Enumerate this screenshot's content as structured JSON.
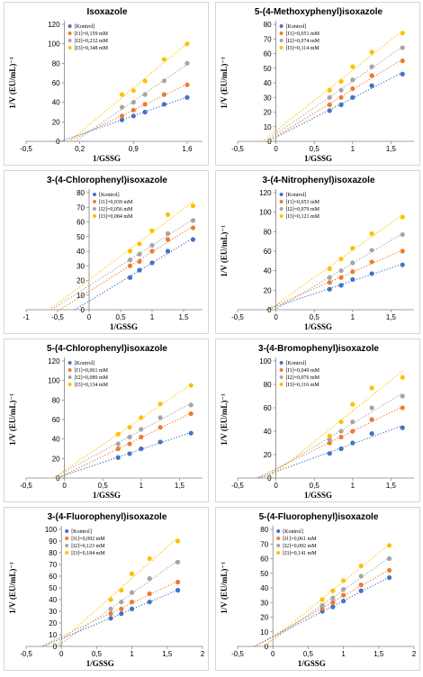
{
  "colors": {
    "kontrol": "#4472C4",
    "i1": "#ED7D31",
    "i2": "#A5A5A5",
    "i3": "#FFC000"
  },
  "chart_data": [
    {
      "type": "scatter",
      "title": "Isoxazole",
      "xlabel": "1/GSSG",
      "ylabel": "1/V (EU/mL)⁻¹",
      "xlim": [
        -0.5,
        1.8
      ],
      "ylim": [
        0,
        120
      ],
      "xticks": [
        -0.5,
        0.2,
        0.9,
        1.6
      ],
      "xticklabels": [
        "-0,5",
        "0,2",
        "0,9",
        "1,6"
      ],
      "yticks": [
        0,
        20,
        40,
        60,
        80,
        100,
        120
      ],
      "fit_lines": "dotted",
      "legend": "top-left",
      "series": [
        {
          "name": "[Kontrol]",
          "x": [
            0.75,
            0.9,
            1.05,
            1.3,
            1.6
          ],
          "y": [
            22,
            26,
            30,
            38,
            45
          ]
        },
        {
          "name": "[I1]=0,159 mM",
          "x": [
            0.75,
            0.9,
            1.05,
            1.3,
            1.6
          ],
          "y": [
            26,
            32,
            38,
            48,
            58
          ]
        },
        {
          "name": "[I2]=0,232 mM",
          "x": [
            0.75,
            0.9,
            1.05,
            1.3,
            1.6
          ],
          "y": [
            35,
            40,
            48,
            62,
            80
          ]
        },
        {
          "name": "[I3]=0,348 mM",
          "x": [
            0.75,
            0.9,
            1.05,
            1.3,
            1.6
          ],
          "y": [
            48,
            52,
            62,
            84,
            100
          ]
        }
      ]
    },
    {
      "type": "scatter",
      "title": "5-(4-Methoxyphenyl)isoxazole",
      "xlabel": "1/GSSG",
      "ylabel": "1/V (EU/mL)⁻¹",
      "xlim": [
        -0.5,
        1.8
      ],
      "ylim": [
        0,
        80
      ],
      "xticks": [
        -0.5,
        0,
        0.5,
        1,
        1.5
      ],
      "xticklabels": [
        "-0,5",
        "0",
        "0,5",
        "1",
        "1,5"
      ],
      "yticks": [
        0,
        10,
        20,
        30,
        40,
        50,
        60,
        70,
        80
      ],
      "fit_lines": "dotted",
      "legend": "top-left",
      "series": [
        {
          "name": "[Kontrol]",
          "x": [
            0.7,
            0.85,
            1.0,
            1.25,
            1.65
          ],
          "y": [
            21,
            25,
            30,
            38,
            46
          ]
        },
        {
          "name": "[I1]=0,051 mM",
          "x": [
            0.7,
            0.85,
            1.0,
            1.25,
            1.65
          ],
          "y": [
            25,
            30,
            36,
            45,
            55
          ]
        },
        {
          "name": "[I2]=0,074 mM",
          "x": [
            0.7,
            0.85,
            1.0,
            1.25,
            1.65
          ],
          "y": [
            30,
            35,
            42,
            51,
            64
          ]
        },
        {
          "name": "[I3]=0,114 mM",
          "x": [
            0.7,
            0.85,
            1.0,
            1.25,
            1.65
          ],
          "y": [
            35,
            41,
            51,
            61,
            74
          ]
        }
      ]
    },
    {
      "type": "scatter",
      "title": "3-(4-Chlorophenyl)isoxazole",
      "xlabel": "1/GSSG",
      "ylabel": "",
      "xlim": [
        -1,
        1.8
      ],
      "ylim": [
        0,
        80
      ],
      "xticks": [
        -1,
        -0.5,
        0,
        0.5,
        1,
        1.5
      ],
      "xticklabels": [
        "-1",
        "-0,5",
        "0",
        "0,5",
        "1",
        "1,5"
      ],
      "yticks": [
        0,
        10,
        20,
        30,
        40,
        50,
        60,
        70,
        80
      ],
      "fit_lines": "dotted",
      "legend": "top-left",
      "series": [
        {
          "name": "[Kontrol]",
          "x": [
            0.65,
            0.8,
            1.0,
            1.25,
            1.65
          ],
          "y": [
            22,
            27,
            32,
            40,
            48
          ]
        },
        {
          "name": "[I1]=0,039 mM",
          "x": [
            0.65,
            0.8,
            1.0,
            1.25,
            1.65
          ],
          "y": [
            30,
            33,
            40,
            48,
            56
          ]
        },
        {
          "name": "[I2]=0,056 mM",
          "x": [
            0.65,
            0.8,
            1.0,
            1.25,
            1.65
          ],
          "y": [
            34,
            38,
            44,
            52,
            61
          ]
        },
        {
          "name": "[I3]=0,084 mM",
          "x": [
            0.65,
            0.8,
            1.0,
            1.25,
            1.65
          ],
          "y": [
            40,
            45,
            54,
            65,
            71
          ]
        }
      ]
    },
    {
      "type": "scatter",
      "title": "3-(4-Nitrophenyl)isoxazole",
      "xlabel": "1/GSSG",
      "ylabel": "1/V (EU/mL)⁻¹",
      "xlim": [
        -0.5,
        1.8
      ],
      "ylim": [
        0,
        120
      ],
      "xticks": [
        -0.5,
        0,
        0.5,
        1,
        1.5
      ],
      "xticklabels": [
        "-0,5",
        "0",
        "0,5",
        "1",
        "1,5"
      ],
      "yticks": [
        0,
        20,
        40,
        60,
        80,
        100,
        120
      ],
      "fit_lines": "dotted",
      "legend": "top-left",
      "series": [
        {
          "name": "[Kontrol]",
          "x": [
            0.7,
            0.85,
            1.0,
            1.25,
            1.65
          ],
          "y": [
            21,
            25,
            31,
            37,
            46
          ]
        },
        {
          "name": "[I1]=0,053 mM",
          "x": [
            0.7,
            0.85,
            1.0,
            1.25,
            1.65
          ],
          "y": [
            28,
            33,
            39,
            49,
            60
          ]
        },
        {
          "name": "[I2]=0,079 mM",
          "x": [
            0.7,
            0.85,
            1.0,
            1.25,
            1.65
          ],
          "y": [
            33,
            40,
            48,
            61,
            77
          ]
        },
        {
          "name": "[I3]=0,121 mM",
          "x": [
            0.7,
            0.85,
            1.0,
            1.25,
            1.65
          ],
          "y": [
            42,
            52,
            63,
            78,
            95
          ]
        }
      ]
    },
    {
      "type": "scatter",
      "title": "5-(4-Chlorophenyl)isoxazole",
      "xlabel": "1/GSSG",
      "ylabel": "1/V (EU/mL)⁻¹",
      "xlim": [
        -0.5,
        1.8
      ],
      "ylim": [
        0,
        120
      ],
      "xticks": [
        -0.5,
        0,
        0.5,
        1,
        1.5
      ],
      "xticklabels": [
        "-0,5",
        "0",
        "0,5",
        "1",
        "1,5"
      ],
      "yticks": [
        0,
        20,
        40,
        60,
        80,
        100,
        120
      ],
      "fit_lines": "dotted",
      "legend": "top-left",
      "series": [
        {
          "name": "[Kontrol]",
          "x": [
            0.7,
            0.85,
            1.0,
            1.25,
            1.65
          ],
          "y": [
            21,
            25,
            30,
            37,
            46
          ]
        },
        {
          "name": "[I1]=0,061 mM",
          "x": [
            0.7,
            0.85,
            1.0,
            1.25,
            1.65
          ],
          "y": [
            30,
            35,
            42,
            52,
            66
          ]
        },
        {
          "name": "[I2]=0,089 mM",
          "x": [
            0.7,
            0.85,
            1.0,
            1.25,
            1.65
          ],
          "y": [
            35,
            42,
            50,
            62,
            75
          ]
        },
        {
          "name": "[I3]=0,134 mM",
          "x": [
            0.7,
            0.85,
            1.0,
            1.25,
            1.65
          ],
          "y": [
            45,
            52,
            62,
            76,
            95
          ]
        }
      ]
    },
    {
      "type": "scatter",
      "title": "3-(4-Bromophenyl)isoxazole",
      "xlabel": "1/GSSG",
      "ylabel": "1/V (EU/mL)⁻¹",
      "xlim": [
        -0.5,
        1.8
      ],
      "ylim": [
        0,
        100
      ],
      "xticks": [
        -0.5,
        0,
        0.5,
        1,
        1.5
      ],
      "xticklabels": [
        "-0,5",
        "0",
        "0,5",
        "1",
        "1,5"
      ],
      "yticks": [
        0,
        20,
        40,
        60,
        80,
        100
      ],
      "fit_lines": "dotted",
      "legend": "top-left",
      "series": [
        {
          "name": "[Kontrol]",
          "x": [
            0.7,
            0.85,
            1.0,
            1.25,
            1.65
          ],
          "y": [
            21,
            25,
            30,
            38,
            43
          ]
        },
        {
          "name": "[I1]=0,049 mM",
          "x": [
            0.7,
            0.85,
            1.0,
            1.25,
            1.65
          ],
          "y": [
            30,
            35,
            40,
            50,
            60
          ]
        },
        {
          "name": "[I2]=0,076 mM",
          "x": [
            0.7,
            0.85,
            1.0,
            1.25,
            1.65
          ],
          "y": [
            33,
            40,
            48,
            60,
            70
          ]
        },
        {
          "name": "[I3]=0,116 mM",
          "x": [
            0.7,
            0.85,
            1.0,
            1.25,
            1.65
          ],
          "y": [
            36,
            48,
            63,
            77,
            86
          ]
        }
      ]
    },
    {
      "type": "scatter",
      "title": "3-(4-Fluorophenyl)isoxazole",
      "xlabel": "1/GSSG",
      "ylabel": "1/V (EU/mL)⁻¹",
      "xlim": [
        -0.5,
        2
      ],
      "ylim": [
        0,
        100
      ],
      "xticks": [
        -0.5,
        0,
        0.5,
        1,
        1.5,
        2
      ],
      "xticklabels": [
        "-0,5",
        "0",
        "0,5",
        "1",
        "1,5",
        "2"
      ],
      "yticks": [
        0,
        10,
        20,
        30,
        40,
        50,
        60,
        70,
        80,
        90,
        100
      ],
      "fit_lines": "dotted",
      "legend": "top-left",
      "series": [
        {
          "name": "[Kontrol]",
          "x": [
            0.7,
            0.85,
            1.0,
            1.25,
            1.65
          ],
          "y": [
            24,
            28,
            32,
            38,
            48
          ]
        },
        {
          "name": "[I1]=0,092 mM",
          "x": [
            0.7,
            0.85,
            1.0,
            1.25,
            1.65
          ],
          "y": [
            28,
            32,
            38,
            45,
            55
          ]
        },
        {
          "name": "[I2]=0,123 mM",
          "x": [
            0.7,
            0.85,
            1.0,
            1.25,
            1.65
          ],
          "y": [
            32,
            38,
            46,
            58,
            72
          ]
        },
        {
          "name": "[I3]=0,184 mM",
          "x": [
            0.7,
            0.85,
            1.0,
            1.25,
            1.65
          ],
          "y": [
            40,
            48,
            62,
            75,
            90
          ]
        }
      ]
    },
    {
      "type": "scatter",
      "title": "5-(4-Fluorophenyl)isoxazole",
      "xlabel": "1/GSSG",
      "ylabel": "1/V (EU/mL)⁻¹",
      "xlim": [
        -0.5,
        2
      ],
      "ylim": [
        0,
        80
      ],
      "xticks": [
        -0.5,
        0,
        0.5,
        1,
        1.5,
        2
      ],
      "xticklabels": [
        "-0,5",
        "0",
        "0,5",
        "1",
        "1,5",
        "2"
      ],
      "yticks": [
        0,
        10,
        20,
        30,
        40,
        50,
        60,
        70,
        80
      ],
      "fit_lines": "dotted",
      "legend": "top-left",
      "series": [
        {
          "name": "[Kontrol]",
          "x": [
            0.7,
            0.85,
            1.0,
            1.25,
            1.65
          ],
          "y": [
            24,
            27,
            31,
            38,
            47
          ]
        },
        {
          "name": "[I1]=0,061 mM",
          "x": [
            0.7,
            0.85,
            1.0,
            1.25,
            1.65
          ],
          "y": [
            26,
            30,
            35,
            42,
            52
          ]
        },
        {
          "name": "[I2]=0,092 mM",
          "x": [
            0.7,
            0.85,
            1.0,
            1.25,
            1.65
          ],
          "y": [
            28,
            33,
            39,
            48,
            60
          ]
        },
        {
          "name": "[I3]=0,141 mM",
          "x": [
            0.7,
            0.85,
            1.0,
            1.25,
            1.65
          ],
          "y": [
            32,
            38,
            45,
            55,
            69
          ]
        }
      ]
    }
  ]
}
